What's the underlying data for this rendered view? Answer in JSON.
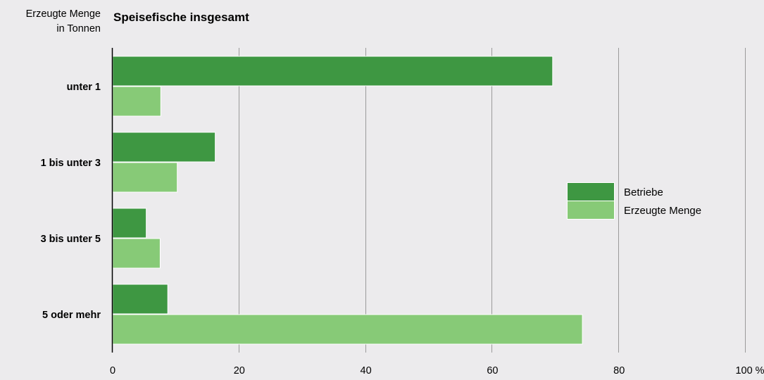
{
  "chart_data": {
    "type": "bar",
    "orientation": "horizontal",
    "title": "Speisefische insgesamt",
    "ylabel": [
      "Erzeugte Menge",
      "in Tonnen"
    ],
    "xlabel": "",
    "categories": [
      "unter 1",
      "1 bis unter 3",
      "3 bis unter 5",
      "5 oder mehr"
    ],
    "series": [
      {
        "name": "Betriebe",
        "values": [
          69.5,
          16.2,
          5.3,
          8.7
        ],
        "color": "#3e9742"
      },
      {
        "name": "Erzeugte Menge",
        "values": [
          7.6,
          10.2,
          7.5,
          74.2
        ],
        "color": "#87ca77"
      }
    ],
    "xlim": [
      0,
      100
    ],
    "xticks": [
      0,
      20,
      40,
      60,
      80,
      100
    ],
    "xtick_labels": [
      "0",
      "20",
      "40",
      "60",
      "80",
      "100 %"
    ],
    "grid": true,
    "legend_position": "right"
  }
}
